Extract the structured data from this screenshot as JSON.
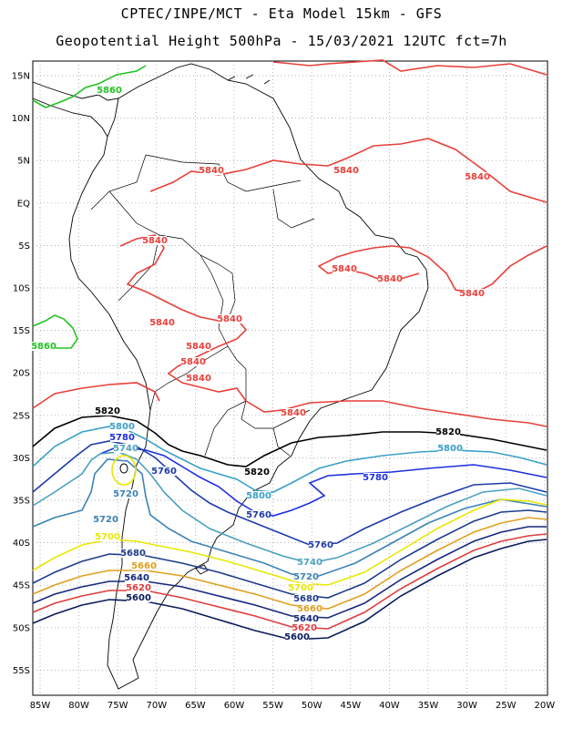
{
  "header": {
    "line1": "CPTEC/INPE/MCT -  Eta Model 15km - GFS",
    "line2": "Geopotential Height 500hPa - 15/03/2021 12UTC fct=7h"
  },
  "axes": {
    "lat_labels": [
      "15N",
      "10N",
      "5N",
      "EQ",
      "5S",
      "10S",
      "15S",
      "20S",
      "25S",
      "30S",
      "35S",
      "40S",
      "45S",
      "50S",
      "55S"
    ],
    "lon_labels": [
      "85W",
      "80W",
      "75W",
      "70W",
      "65W",
      "60W",
      "55W",
      "50W",
      "45W",
      "40W",
      "35W",
      "30W",
      "25W",
      "20W"
    ]
  },
  "colors": {
    "c5860": "#22c322",
    "c5840": "#e8403a",
    "c5820": "#000000",
    "c5800": "#3aa0c8",
    "c5780": "#1e2ee0",
    "c5760": "#1e3caa",
    "c5740": "#4aa0c0",
    "c5720": "#3c82b4",
    "c5700": "#e8e800",
    "c5680": "#1e3c8c",
    "c5660": "#e0a020",
    "c5640": "#14287c",
    "c5620": "#e03c3c",
    "c5600": "#0a1a5a"
  },
  "contour_labels": [
    {
      "text": "5860",
      "color": "#22c322"
    },
    {
      "text": "5860",
      "color": "#22c322"
    },
    {
      "text": "5840",
      "color": "#e8403a"
    },
    {
      "text": "5840",
      "color": "#e8403a"
    },
    {
      "text": "5840",
      "color": "#e8403a"
    },
    {
      "text": "5840",
      "color": "#e8403a"
    },
    {
      "text": "5840",
      "color": "#e8403a"
    },
    {
      "text": "5840",
      "color": "#e8403a"
    },
    {
      "text": "5840",
      "color": "#e8403a"
    },
    {
      "text": "5840",
      "color": "#e8403a"
    },
    {
      "text": "5840",
      "color": "#e8403a"
    },
    {
      "text": "5840",
      "color": "#e8403a"
    },
    {
      "text": "5840",
      "color": "#e8403a"
    },
    {
      "text": "5840",
      "color": "#e8403a"
    },
    {
      "text": "5840",
      "color": "#e8403a"
    },
    {
      "text": "5820",
      "color": "#000000"
    },
    {
      "text": "5820",
      "color": "#000000"
    },
    {
      "text": "5820",
      "color": "#000000"
    },
    {
      "text": "5800",
      "color": "#3aa0c8"
    },
    {
      "text": "5800",
      "color": "#3aa0c8"
    },
    {
      "text": "5800",
      "color": "#3aa0c8"
    },
    {
      "text": "5780",
      "color": "#1e2ee0"
    },
    {
      "text": "5780",
      "color": "#1e2ee0"
    },
    {
      "text": "5760",
      "color": "#1e3caa"
    },
    {
      "text": "5760",
      "color": "#1e3caa"
    },
    {
      "text": "5760",
      "color": "#1e3caa"
    },
    {
      "text": "5740",
      "color": "#4aa0c0"
    },
    {
      "text": "5740",
      "color": "#4aa0c0"
    },
    {
      "text": "5720",
      "color": "#3c82b4"
    },
    {
      "text": "5720",
      "color": "#3c82b4"
    },
    {
      "text": "5720",
      "color": "#3c82b4"
    },
    {
      "text": "5700",
      "color": "#e8e800"
    },
    {
      "text": "5700",
      "color": "#e8e800"
    },
    {
      "text": "5680",
      "color": "#1e3c8c"
    },
    {
      "text": "5680",
      "color": "#1e3c8c"
    },
    {
      "text": "5660",
      "color": "#e0a020"
    },
    {
      "text": "5660",
      "color": "#e0a020"
    },
    {
      "text": "5640",
      "color": "#14287c"
    },
    {
      "text": "5640",
      "color": "#14287c"
    },
    {
      "text": "5620",
      "color": "#e03c3c"
    },
    {
      "text": "5620",
      "color": "#e03c3c"
    },
    {
      "text": "5600",
      "color": "#0a1a5a"
    },
    {
      "text": "5600",
      "color": "#0a1a5a"
    }
  ]
}
